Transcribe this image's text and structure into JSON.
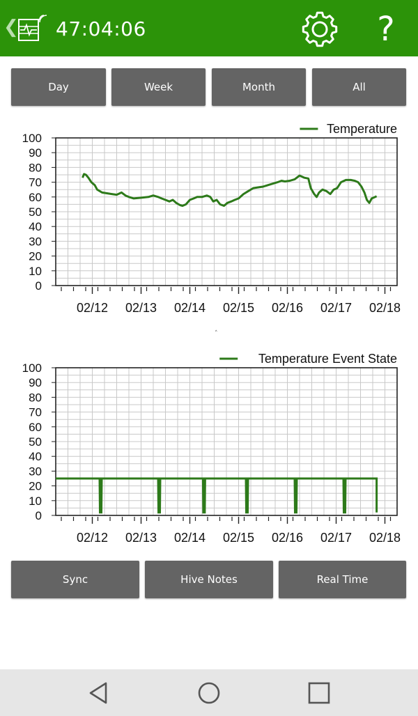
{
  "header": {
    "timer": "47:04:06",
    "back_icon": "chevron-left-icon",
    "app_icon": "hive-monitor-icon",
    "settings_icon": "gear-icon",
    "help_label": "?"
  },
  "range_tabs": [
    {
      "label": "Day"
    },
    {
      "label": "Week"
    },
    {
      "label": "Month"
    },
    {
      "label": "All"
    }
  ],
  "footer_buttons": [
    {
      "label": "Sync"
    },
    {
      "label": "Hive Notes"
    },
    {
      "label": "Real Time"
    }
  ],
  "navbar": {
    "items": [
      "back-triangle-icon",
      "home-circle-icon",
      "recents-square-icon"
    ]
  },
  "colors": {
    "header_bg": "#2c9309",
    "button_bg": "#646464",
    "series_line": "#2d7a1a"
  },
  "chart_data": [
    {
      "type": "line",
      "series": [
        {
          "name": "Temperature",
          "points": [
            [
              0.0,
              73
            ],
            [
              0.03,
              75.5
            ],
            [
              0.07,
              75
            ],
            [
              0.12,
              73
            ],
            [
              0.18,
              70
            ],
            [
              0.25,
              68
            ],
            [
              0.3,
              65
            ],
            [
              0.4,
              63
            ],
            [
              0.5,
              62.5
            ],
            [
              0.6,
              62
            ],
            [
              0.7,
              61.5
            ],
            [
              0.8,
              63
            ],
            [
              0.88,
              61
            ],
            [
              0.95,
              60
            ],
            [
              1.05,
              59
            ],
            [
              1.2,
              59.5
            ],
            [
              1.35,
              60
            ],
            [
              1.45,
              61
            ],
            [
              1.55,
              60
            ],
            [
              1.62,
              59
            ],
            [
              1.7,
              58
            ],
            [
              1.78,
              57
            ],
            [
              1.85,
              58
            ],
            [
              1.92,
              56
            ],
            [
              2.0,
              54.5
            ],
            [
              2.05,
              54
            ],
            [
              2.12,
              55
            ],
            [
              2.2,
              58
            ],
            [
              2.28,
              59
            ],
            [
              2.35,
              60
            ],
            [
              2.45,
              60
            ],
            [
              2.55,
              61
            ],
            [
              2.62,
              60
            ],
            [
              2.68,
              57
            ],
            [
              2.75,
              58
            ],
            [
              2.82,
              55
            ],
            [
              2.9,
              54
            ],
            [
              2.97,
              56
            ],
            [
              3.05,
              57
            ],
            [
              3.12,
              58
            ],
            [
              3.2,
              59
            ],
            [
              3.3,
              62
            ],
            [
              3.4,
              64
            ],
            [
              3.5,
              66
            ],
            [
              3.6,
              66.5
            ],
            [
              3.7,
              67
            ],
            [
              3.8,
              68
            ],
            [
              3.9,
              69
            ],
            [
              4.0,
              70
            ],
            [
              4.08,
              71
            ],
            [
              4.15,
              70.5
            ],
            [
              4.25,
              71
            ],
            [
              4.35,
              72
            ],
            [
              4.45,
              74.5
            ],
            [
              4.55,
              73
            ],
            [
              4.63,
              72.5
            ],
            [
              4.68,
              66
            ],
            [
              4.75,
              62
            ],
            [
              4.8,
              60
            ],
            [
              4.85,
              63
            ],
            [
              4.92,
              65
            ],
            [
              5.0,
              64
            ],
            [
              5.08,
              62
            ],
            [
              5.15,
              65
            ],
            [
              5.22,
              66
            ],
            [
              5.3,
              70
            ],
            [
              5.4,
              71.5
            ],
            [
              5.5,
              71.5
            ],
            [
              5.58,
              71
            ],
            [
              5.65,
              70
            ],
            [
              5.72,
              67
            ],
            [
              5.78,
              63
            ],
            [
              5.83,
              58
            ],
            [
              5.88,
              56
            ],
            [
              5.93,
              59
            ],
            [
              6.0,
              60
            ],
            [
              6.03,
              60.5
            ]
          ]
        }
      ],
      "x_tick_labels": [
        "02/12",
        "02/13",
        "02/14",
        "02/15",
        "02/16",
        "02/17",
        "02/18"
      ],
      "y_tick_labels": [
        "0",
        "10",
        "20",
        "30",
        "40",
        "50",
        "60",
        "70",
        "80",
        "90",
        "100"
      ],
      "ylim": [
        0,
        100
      ],
      "xlim": [
        "02/11",
        "02/18"
      ],
      "grid": true,
      "legend": "top-right"
    },
    {
      "type": "line",
      "series": [
        {
          "name": "Temperature Event State",
          "baseline": 25,
          "dip_value": 2,
          "dips_at": [
            0.35,
            1.55,
            2.47,
            3.35,
            4.35,
            5.35
          ],
          "end_drop": 6.03
        }
      ],
      "x_tick_labels": [
        "02/12",
        "02/13",
        "02/14",
        "02/15",
        "02/16",
        "02/17",
        "02/18"
      ],
      "y_tick_labels": [
        "0",
        "10",
        "20",
        "30",
        "40",
        "50",
        "60",
        "70",
        "80",
        "90",
        "100"
      ],
      "ylim": [
        0,
        100
      ],
      "grid": true,
      "legend": "top-right"
    }
  ]
}
